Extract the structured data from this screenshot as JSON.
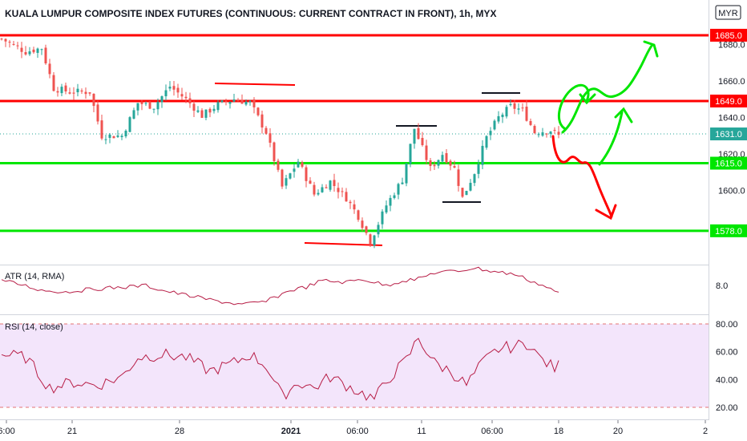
{
  "header": {
    "title": "KUALA LUMPUR COMPOSITE INDEX FUTURES (CONTINUOUS: CURRENT CONTRACT IN FRONT), 1h, MYX",
    "currency": "MYR"
  },
  "chart_data": [
    {
      "type": "candlestick",
      "title": "KUALA LUMPUR COMPOSITE INDEX FUTURES (CONTINUOUS: CURRENT CONTRACT IN FRONT), 1h, MYX",
      "y_ticks": [
        "1680.0",
        "1660.0",
        "1640.0",
        "1620.0",
        "1600.0"
      ],
      "ylim": [
        1550,
        1700
      ],
      "x_ticks": [
        "6:00",
        "21",
        "28",
        "2021",
        "06:00",
        "11",
        "06:00",
        "18",
        "20",
        "2"
      ],
      "colors": {
        "up": "#26a69a",
        "down": "#ef5350"
      },
      "close_points": [
        {
          "x": 0,
          "y": 1683
        },
        {
          "x": 6,
          "y": 1676
        },
        {
          "x": 10,
          "y": 1678
        },
        {
          "x": 13,
          "y": 1656
        },
        {
          "x": 17,
          "y": 1654
        },
        {
          "x": 22,
          "y": 1654
        },
        {
          "x": 25,
          "y": 1630
        },
        {
          "x": 30,
          "y": 1630
        },
        {
          "x": 34,
          "y": 1648
        },
        {
          "x": 38,
          "y": 1646
        },
        {
          "x": 42,
          "y": 1657
        },
        {
          "x": 46,
          "y": 1650
        },
        {
          "x": 50,
          "y": 1641
        },
        {
          "x": 54,
          "y": 1647
        },
        {
          "x": 58,
          "y": 1650
        },
        {
          "x": 62,
          "y": 1648
        },
        {
          "x": 66,
          "y": 1632
        },
        {
          "x": 70,
          "y": 1602
        },
        {
          "x": 74,
          "y": 1616
        },
        {
          "x": 78,
          "y": 1598
        },
        {
          "x": 82,
          "y": 1605
        },
        {
          "x": 86,
          "y": 1596
        },
        {
          "x": 89,
          "y": 1586
        },
        {
          "x": 92,
          "y": 1572
        },
        {
          "x": 96,
          "y": 1592
        },
        {
          "x": 100,
          "y": 1606
        },
        {
          "x": 103,
          "y": 1634
        },
        {
          "x": 107,
          "y": 1612
        },
        {
          "x": 110,
          "y": 1620
        },
        {
          "x": 113,
          "y": 1612
        },
        {
          "x": 115,
          "y": 1596
        },
        {
          "x": 118,
          "y": 1610
        },
        {
          "x": 121,
          "y": 1629
        },
        {
          "x": 124,
          "y": 1640
        },
        {
          "x": 127,
          "y": 1646
        },
        {
          "x": 130,
          "y": 1644
        },
        {
          "x": 133,
          "y": 1632
        },
        {
          "x": 137,
          "y": 1633
        },
        {
          "x": 139,
          "y": 1630
        }
      ],
      "horizontal_levels": [
        {
          "value": 1685.0,
          "label": "1685.0",
          "color": "#ff0000"
        },
        {
          "value": 1649.0,
          "label": "1649.0",
          "color": "#ff0000"
        },
        {
          "value": 1615.0,
          "label": "1615.0",
          "color": "#00e600"
        },
        {
          "value": 1578.0,
          "label": "1578.0",
          "color": "#00e600"
        }
      ],
      "last_price": {
        "value": 1631.0,
        "label": "1631.0",
        "color": "#26a69a"
      }
    },
    {
      "type": "line",
      "title": "ATR (14, RMA)",
      "y_ticks": [
        "8.0"
      ],
      "series_color": "#b71c45"
    },
    {
      "type": "line",
      "title": "RSI (14, close)",
      "y_ticks": [
        "80.00",
        "60.00",
        "40.00",
        "20.00"
      ],
      "ylim": [
        15,
        85
      ],
      "bands": [
        80,
        20
      ],
      "series_color": "#b71c45",
      "band_fill": "#f3e5fb"
    }
  ]
}
